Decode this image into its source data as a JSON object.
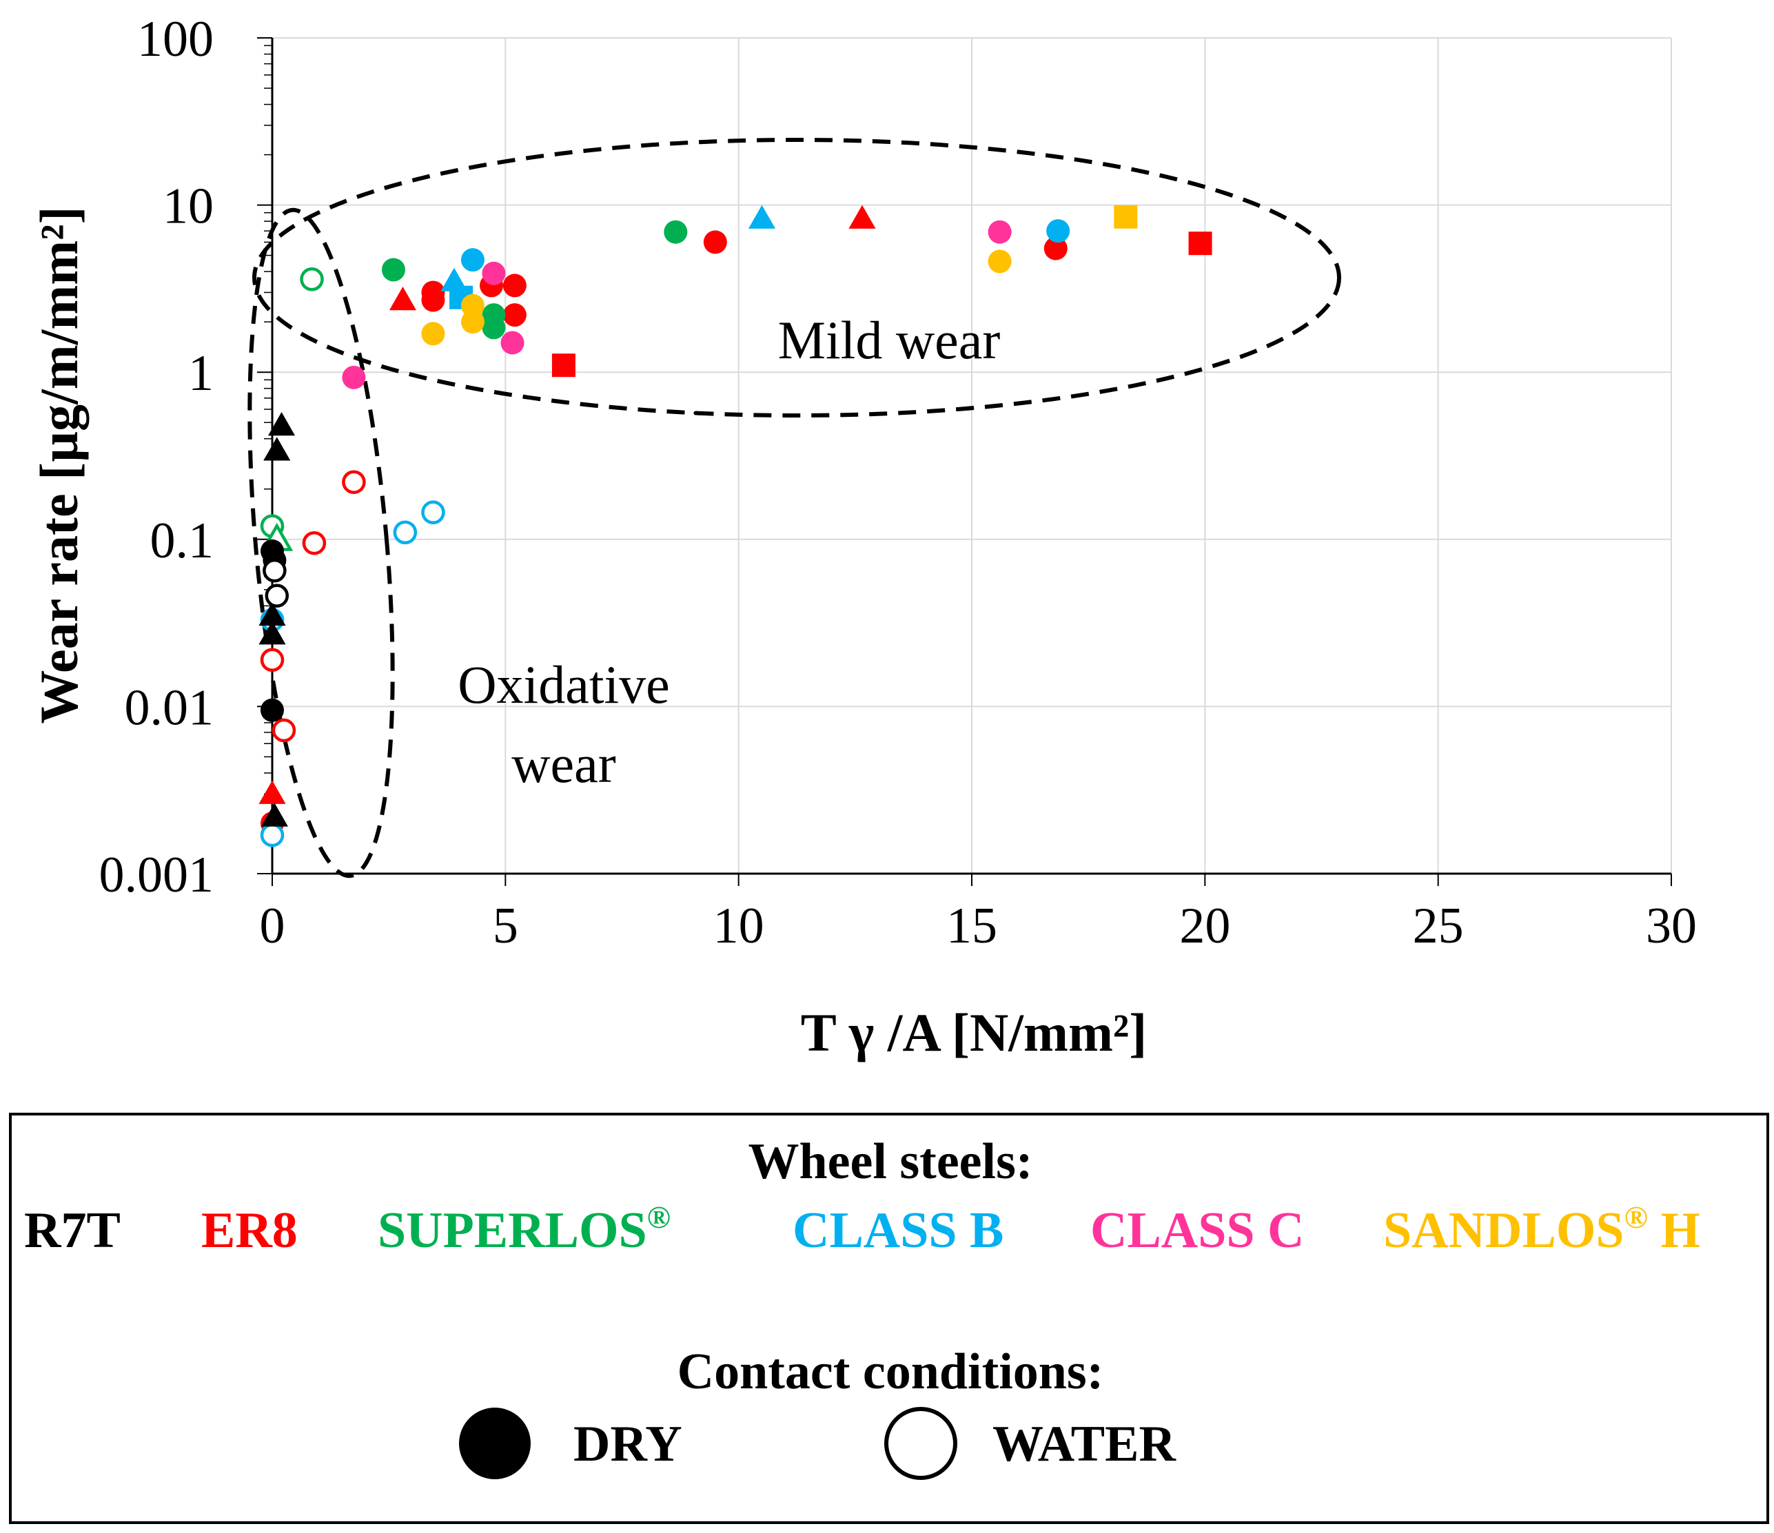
{
  "chart_data": {
    "type": "scatter",
    "xlabel": "T γ /A [N/mm²]",
    "ylabel": "Wear rate [µg/m/mm²]",
    "xlim": [
      0,
      30
    ],
    "ylim": [
      0.001,
      100
    ],
    "yscale": "log",
    "grid": true,
    "x_ticks": [
      "0",
      "5",
      "10",
      "15",
      "20",
      "25",
      "30"
    ],
    "y_ticks": [
      "0.001",
      "0.01",
      "0.1",
      "1",
      "10",
      "100"
    ],
    "regions": [
      {
        "label": "Mild wear",
        "center": [
          11.5,
          3.6
        ]
      },
      {
        "label_line1": "Oxidative",
        "label_line2": "wear",
        "center": [
          1.0,
          0.07
        ]
      }
    ],
    "colors": {
      "R7T": "#000000",
      "ER8": "#ff0000",
      "SUPERLOS": "#00b050",
      "CLASS B": "#00b0f0",
      "CLASS C": "#ff3399",
      "SANDLOS H": "#ffc000"
    },
    "points": [
      {
        "steel": "ER8",
        "cond": "dry",
        "shape": "circle",
        "x": 9.5,
        "y": 6.0
      },
      {
        "steel": "ER8",
        "cond": "dry",
        "shape": "circle",
        "x": 16.8,
        "y": 5.5
      },
      {
        "steel": "ER8",
        "cond": "dry",
        "shape": "circle",
        "x": 3.45,
        "y": 3.0
      },
      {
        "steel": "ER8",
        "cond": "dry",
        "shape": "circle",
        "x": 3.45,
        "y": 2.7
      },
      {
        "steel": "ER8",
        "cond": "dry",
        "shape": "circle",
        "x": 4.7,
        "y": 3.3
      },
      {
        "steel": "ER8",
        "cond": "dry",
        "shape": "circle",
        "x": 5.2,
        "y": 3.3
      },
      {
        "steel": "ER8",
        "cond": "dry",
        "shape": "circle",
        "x": 5.2,
        "y": 2.2
      },
      {
        "steel": "ER8",
        "cond": "dry",
        "shape": "circle",
        "x": 0.0,
        "y": 0.002
      },
      {
        "steel": "ER8",
        "cond": "dry",
        "shape": "triangle",
        "x": 12.65,
        "y": 8.3
      },
      {
        "steel": "ER8",
        "cond": "dry",
        "shape": "triangle",
        "x": 2.8,
        "y": 2.7
      },
      {
        "steel": "ER8",
        "cond": "dry",
        "shape": "triangle",
        "x": 0.0,
        "y": 0.003
      },
      {
        "steel": "ER8",
        "cond": "dry",
        "shape": "square",
        "x": 19.9,
        "y": 5.9
      },
      {
        "steel": "ER8",
        "cond": "dry",
        "shape": "square",
        "x": 6.25,
        "y": 1.1
      },
      {
        "steel": "ER8",
        "cond": "water",
        "shape": "circle",
        "x": 1.75,
        "y": 0.22
      },
      {
        "steel": "ER8",
        "cond": "water",
        "shape": "circle",
        "x": 0.9,
        "y": 0.095
      },
      {
        "steel": "ER8",
        "cond": "water",
        "shape": "circle",
        "x": 0.0,
        "y": 0.019
      },
      {
        "steel": "ER8",
        "cond": "water",
        "shape": "circle",
        "x": 0.25,
        "y": 0.0072
      },
      {
        "steel": "SUPERLOS",
        "cond": "dry",
        "shape": "circle",
        "x": 8.65,
        "y": 6.9
      },
      {
        "steel": "SUPERLOS",
        "cond": "dry",
        "shape": "circle",
        "x": 2.6,
        "y": 4.1
      },
      {
        "steel": "SUPERLOS",
        "cond": "dry",
        "shape": "circle",
        "x": 4.75,
        "y": 2.2
      },
      {
        "steel": "SUPERLOS",
        "cond": "dry",
        "shape": "circle",
        "x": 4.75,
        "y": 1.85
      },
      {
        "steel": "SUPERLOS",
        "cond": "water",
        "shape": "circle",
        "x": 0.85,
        "y": 3.6
      },
      {
        "steel": "SUPERLOS",
        "cond": "water",
        "shape": "circle",
        "x": 0.0,
        "y": 0.12
      },
      {
        "steel": "SUPERLOS",
        "cond": "water",
        "shape": "triangle",
        "x": 0.1,
        "y": 0.1
      },
      {
        "steel": "CLASS B",
        "cond": "dry",
        "shape": "circle",
        "x": 4.3,
        "y": 4.7
      },
      {
        "steel": "CLASS B",
        "cond": "dry",
        "shape": "circle",
        "x": 16.85,
        "y": 7.0
      },
      {
        "steel": "CLASS B",
        "cond": "dry",
        "shape": "triangle",
        "x": 10.5,
        "y": 8.3
      },
      {
        "steel": "CLASS B",
        "cond": "dry",
        "shape": "triangle",
        "x": 3.9,
        "y": 3.5
      },
      {
        "steel": "CLASS B",
        "cond": "dry",
        "shape": "square",
        "x": 4.05,
        "y": 2.8
      },
      {
        "steel": "CLASS B",
        "cond": "water",
        "shape": "circle",
        "x": 3.45,
        "y": 0.145
      },
      {
        "steel": "CLASS B",
        "cond": "water",
        "shape": "circle",
        "x": 2.85,
        "y": 0.11
      },
      {
        "steel": "CLASS B",
        "cond": "water",
        "shape": "circle",
        "x": 0.0,
        "y": 0.033
      },
      {
        "steel": "CLASS B",
        "cond": "water",
        "shape": "circle",
        "x": 0.0,
        "y": 0.0017
      },
      {
        "steel": "CLASS C",
        "cond": "dry",
        "shape": "circle",
        "x": 1.75,
        "y": 0.93
      },
      {
        "steel": "CLASS C",
        "cond": "dry",
        "shape": "circle",
        "x": 4.75,
        "y": 3.9
      },
      {
        "steel": "CLASS C",
        "cond": "dry",
        "shape": "circle",
        "x": 5.15,
        "y": 1.5
      },
      {
        "steel": "CLASS C",
        "cond": "dry",
        "shape": "circle",
        "x": 15.6,
        "y": 6.9
      },
      {
        "steel": "SANDLOS H",
        "cond": "dry",
        "shape": "circle",
        "x": 3.45,
        "y": 1.7
      },
      {
        "steel": "SANDLOS H",
        "cond": "dry",
        "shape": "circle",
        "x": 4.3,
        "y": 2.5
      },
      {
        "steel": "SANDLOS H",
        "cond": "dry",
        "shape": "circle",
        "x": 4.3,
        "y": 2.0
      },
      {
        "steel": "SANDLOS H",
        "cond": "dry",
        "shape": "circle",
        "x": 15.6,
        "y": 4.6
      },
      {
        "steel": "SANDLOS H",
        "cond": "dry",
        "shape": "square",
        "x": 18.3,
        "y": 8.5
      },
      {
        "steel": "R7T",
        "cond": "dry",
        "shape": "triangle",
        "x": 0.2,
        "y": 0.48
      },
      {
        "steel": "R7T",
        "cond": "dry",
        "shape": "triangle",
        "x": 0.1,
        "y": 0.34
      },
      {
        "steel": "R7T",
        "cond": "dry",
        "shape": "circle",
        "x": 0.0,
        "y": 0.085
      },
      {
        "steel": "R7T",
        "cond": "dry",
        "shape": "circle",
        "x": 0.05,
        "y": 0.075
      },
      {
        "steel": "R7T",
        "cond": "dry",
        "shape": "triangle",
        "x": 0.0,
        "y": 0.035
      },
      {
        "steel": "R7T",
        "cond": "dry",
        "shape": "triangle",
        "x": 0.0,
        "y": 0.027
      },
      {
        "steel": "R7T",
        "cond": "dry",
        "shape": "circle",
        "x": 0.0,
        "y": 0.0095
      },
      {
        "steel": "R7T",
        "cond": "dry",
        "shape": "triangle",
        "x": 0.05,
        "y": 0.0022
      },
      {
        "steel": "R7T",
        "cond": "water",
        "shape": "circle",
        "x": 0.05,
        "y": 0.065
      },
      {
        "steel": "R7T",
        "cond": "water",
        "shape": "circle",
        "x": 0.1,
        "y": 0.046
      }
    ]
  },
  "legend": {
    "steels_title": "Wheel steels:",
    "steels": [
      {
        "name": "R7T",
        "sup": "",
        "suffix": "",
        "color": "#000000"
      },
      {
        "name": "ER8",
        "sup": "",
        "suffix": "",
        "color": "#ff0000"
      },
      {
        "name": "SUPERLOS",
        "sup": "®",
        "suffix": "",
        "color": "#00b050"
      },
      {
        "name": "CLASS B",
        "sup": "",
        "suffix": "",
        "color": "#00b0f0"
      },
      {
        "name": "CLASS C",
        "sup": "",
        "suffix": "",
        "color": "#ff3399"
      },
      {
        "name": "SANDLOS",
        "sup": "®",
        "suffix": " H",
        "color": "#ffc000"
      }
    ],
    "conditions_title": "Contact conditions:",
    "dry_label": "DRY",
    "water_label": "WATER"
  }
}
